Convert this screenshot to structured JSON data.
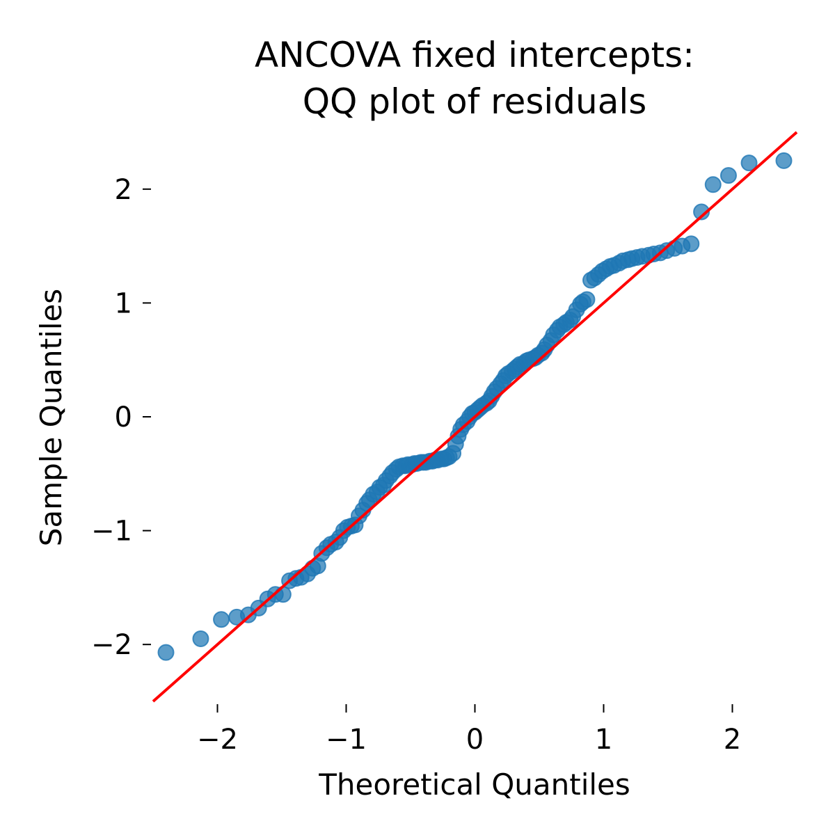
{
  "chart_data": {
    "type": "scatter",
    "title_lines": [
      "ANCOVA fixed intercepts:",
      "QQ plot of residuals"
    ],
    "xlabel": "Theoretical Quantiles",
    "ylabel": "Sample Quantiles",
    "xlim": [
      -2.5,
      2.5
    ],
    "ylim": [
      -2.5,
      2.5
    ],
    "x_ticks": [
      -2,
      -1,
      0,
      1,
      2
    ],
    "x_tick_labels": [
      "−2",
      "−1",
      "0",
      "1",
      "2"
    ],
    "y_ticks": [
      -2,
      -1,
      0,
      1,
      2
    ],
    "y_tick_labels": [
      "−2",
      "−1",
      "0",
      "1",
      "2"
    ],
    "grid": false,
    "point_color": "#1f77b4",
    "line_color": "#ff0000",
    "reference_line": {
      "slope": 1.0,
      "intercept": 0.0
    },
    "series": [
      {
        "x": [
          -2.4,
          -2.13,
          -1.97,
          -1.85,
          -1.76,
          -1.68,
          -1.61,
          -1.55,
          -1.49,
          -1.44,
          -1.39,
          -1.35,
          -1.3,
          -1.26,
          -1.22,
          -1.19,
          -1.15,
          -1.12,
          -1.08,
          -1.05,
          -1.02,
          -0.99,
          -0.96,
          -0.93,
          -0.9,
          -0.87,
          -0.84,
          -0.82,
          -0.79,
          -0.76,
          -0.74,
          -0.71,
          -0.69,
          -0.66,
          -0.64,
          -0.61,
          -0.59,
          -0.56,
          -0.54,
          -0.52,
          -0.49,
          -0.47,
          -0.45,
          -0.42,
          -0.4,
          -0.38,
          -0.35,
          -0.33,
          -0.31,
          -0.29,
          -0.26,
          -0.24,
          -0.22,
          -0.2,
          -0.17,
          -0.15,
          -0.13,
          -0.11,
          -0.09,
          -0.06,
          -0.04,
          -0.02,
          0.0,
          0.02,
          0.04,
          0.06,
          0.09,
          0.11,
          0.13,
          0.15,
          0.17,
          0.2,
          0.22,
          0.24,
          0.26,
          0.29,
          0.31,
          0.33,
          0.35,
          0.38,
          0.4,
          0.42,
          0.45,
          0.47,
          0.49,
          0.52,
          0.54,
          0.56,
          0.59,
          0.61,
          0.64,
          0.66,
          0.69,
          0.71,
          0.74,
          0.76,
          0.79,
          0.82,
          0.84,
          0.87,
          0.9,
          0.93,
          0.96,
          0.99,
          1.02,
          1.05,
          1.08,
          1.12,
          1.15,
          1.19,
          1.22,
          1.26,
          1.3,
          1.35,
          1.39,
          1.44,
          1.49,
          1.55,
          1.61,
          1.68,
          1.76,
          1.85,
          1.97,
          2.13,
          2.4
        ],
        "y": [
          -2.07,
          -1.95,
          -1.78,
          -1.76,
          -1.74,
          -1.68,
          -1.6,
          -1.56,
          -1.56,
          -1.44,
          -1.42,
          -1.41,
          -1.38,
          -1.33,
          -1.31,
          -1.2,
          -1.15,
          -1.12,
          -1.1,
          -1.06,
          -1.0,
          -0.97,
          -0.96,
          -0.95,
          -0.87,
          -0.82,
          -0.76,
          -0.73,
          -0.68,
          -0.66,
          -0.62,
          -0.6,
          -0.56,
          -0.52,
          -0.49,
          -0.46,
          -0.44,
          -0.43,
          -0.43,
          -0.42,
          -0.42,
          -0.41,
          -0.41,
          -0.4,
          -0.4,
          -0.4,
          -0.39,
          -0.39,
          -0.38,
          -0.38,
          -0.37,
          -0.37,
          -0.36,
          -0.35,
          -0.32,
          -0.24,
          -0.17,
          -0.11,
          -0.07,
          -0.04,
          0.0,
          0.03,
          0.04,
          0.06,
          0.08,
          0.1,
          0.12,
          0.14,
          0.18,
          0.22,
          0.25,
          0.29,
          0.32,
          0.36,
          0.38,
          0.4,
          0.42,
          0.44,
          0.46,
          0.47,
          0.49,
          0.5,
          0.51,
          0.52,
          0.54,
          0.56,
          0.59,
          0.63,
          0.67,
          0.72,
          0.76,
          0.79,
          0.81,
          0.83,
          0.85,
          0.88,
          0.94,
          0.99,
          1.01,
          1.03,
          1.2,
          1.22,
          1.25,
          1.28,
          1.3,
          1.32,
          1.33,
          1.35,
          1.37,
          1.38,
          1.39,
          1.4,
          1.41,
          1.42,
          1.43,
          1.44,
          1.46,
          1.48,
          1.5,
          1.52,
          1.8,
          2.04,
          2.12,
          2.23,
          2.25
        ]
      }
    ]
  }
}
